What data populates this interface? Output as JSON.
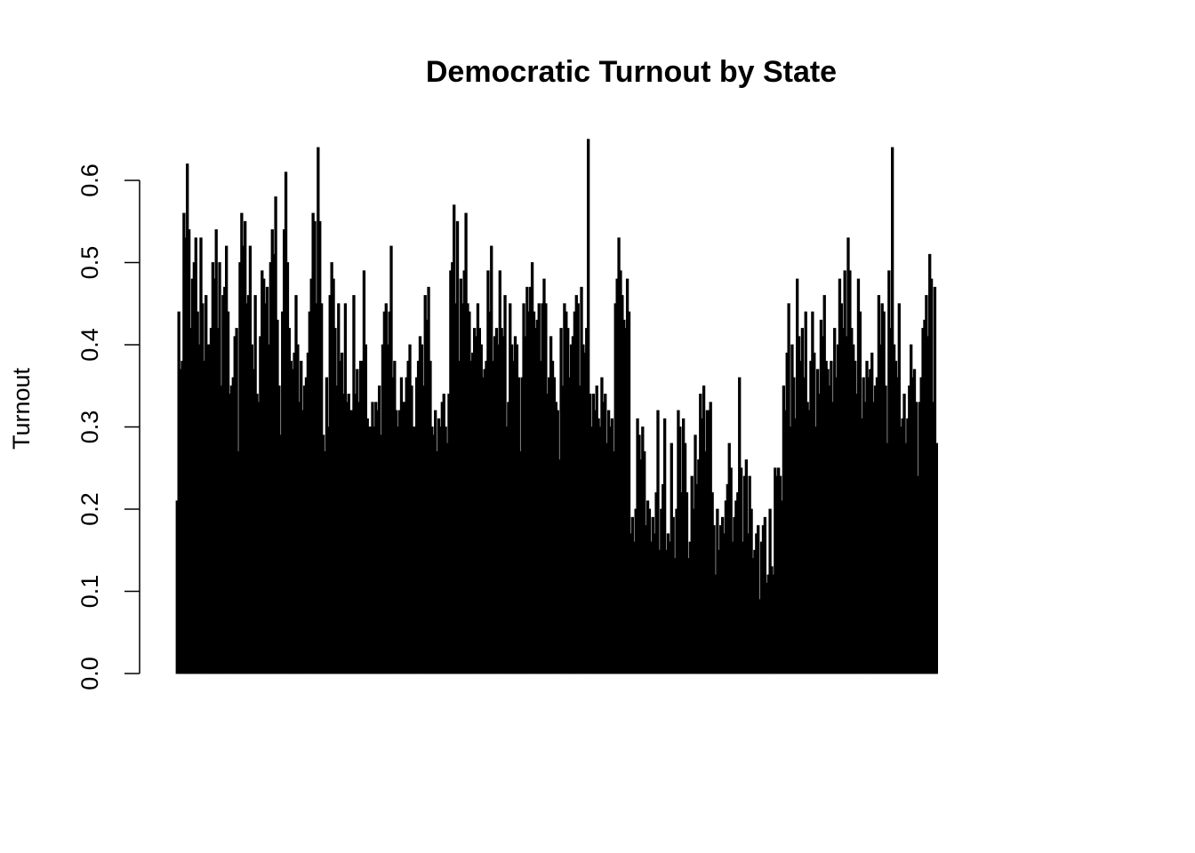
{
  "chart_data": {
    "type": "bar",
    "title": "Democratic Turnout by State",
    "xlabel": "",
    "ylabel": "Turnout",
    "ylim": [
      0,
      0.65
    ],
    "yticks": [
      0.0,
      0.1,
      0.2,
      0.3,
      0.4,
      0.5,
      0.6
    ],
    "ytick_labels": [
      "0.0",
      "0.1",
      "0.2",
      "0.3",
      "0.4",
      "0.5",
      "0.6"
    ],
    "grid": false,
    "legend": "none",
    "bar_color": "#000000",
    "series": [
      {
        "values": [
          0.21,
          0.44,
          0.37,
          0.38,
          0.56,
          0.53,
          0.62,
          0.54,
          0.42,
          0.48,
          0.5,
          0.53,
          0.44,
          0.4,
          0.53,
          0.45,
          0.38,
          0.46,
          0.4,
          0.4,
          0.42,
          0.5,
          0.48,
          0.54,
          0.42,
          0.5,
          0.35,
          0.46,
          0.47,
          0.52,
          0.44,
          0.34,
          0.35,
          0.36,
          0.41,
          0.42,
          0.27,
          0.5,
          0.56,
          0.52,
          0.55,
          0.45,
          0.46,
          0.52,
          0.4,
          0.37,
          0.46,
          0.34,
          0.33,
          0.41,
          0.49,
          0.48,
          0.45,
          0.47,
          0.4,
          0.5,
          0.54,
          0.51,
          0.58,
          0.43,
          0.35,
          0.29,
          0.44,
          0.54,
          0.61,
          0.5,
          0.42,
          0.38,
          0.37,
          0.39,
          0.46,
          0.4,
          0.33,
          0.38,
          0.32,
          0.35,
          0.36,
          0.39,
          0.44,
          0.48,
          0.56,
          0.55,
          0.45,
          0.64,
          0.55,
          0.45,
          0.29,
          0.27,
          0.36,
          0.3,
          0.46,
          0.5,
          0.48,
          0.42,
          0.35,
          0.45,
          0.38,
          0.39,
          0.34,
          0.45,
          0.33,
          0.34,
          0.32,
          0.32,
          0.46,
          0.34,
          0.37,
          0.33,
          0.38,
          0.38,
          0.49,
          0.4,
          0.31,
          0.3,
          0.3,
          0.33,
          0.3,
          0.33,
          0.32,
          0.35,
          0.29,
          0.4,
          0.44,
          0.45,
          0.4,
          0.44,
          0.52,
          0.36,
          0.38,
          0.32,
          0.3,
          0.32,
          0.36,
          0.33,
          0.33,
          0.36,
          0.38,
          0.4,
          0.35,
          0.3,
          0.3,
          0.36,
          0.38,
          0.41,
          0.4,
          0.35,
          0.46,
          0.43,
          0.47,
          0.38,
          0.3,
          0.29,
          0.32,
          0.27,
          0.31,
          0.3,
          0.33,
          0.34,
          0.3,
          0.28,
          0.34,
          0.49,
          0.5,
          0.57,
          0.45,
          0.55,
          0.38,
          0.48,
          0.45,
          0.49,
          0.56,
          0.45,
          0.44,
          0.38,
          0.39,
          0.42,
          0.41,
          0.45,
          0.42,
          0.4,
          0.36,
          0.37,
          0.38,
          0.49,
          0.44,
          0.52,
          0.38,
          0.41,
          0.42,
          0.4,
          0.49,
          0.42,
          0.41,
          0.46,
          0.3,
          0.33,
          0.45,
          0.4,
          0.38,
          0.41,
          0.4,
          0.36,
          0.27,
          0.36,
          0.45,
          0.41,
          0.47,
          0.44,
          0.47,
          0.5,
          0.44,
          0.42,
          0.43,
          0.45,
          0.38,
          0.45,
          0.48,
          0.45,
          0.34,
          0.36,
          0.41,
          0.38,
          0.36,
          0.33,
          0.32,
          0.26,
          0.42,
          0.35,
          0.45,
          0.44,
          0.42,
          0.36,
          0.4,
          0.41,
          0.44,
          0.46,
          0.45,
          0.35,
          0.47,
          0.4,
          0.39,
          0.42,
          0.65,
          0.34,
          0.3,
          0.34,
          0.32,
          0.35,
          0.31,
          0.3,
          0.36,
          0.33,
          0.34,
          0.28,
          0.32,
          0.3,
          0.31,
          0.27,
          0.45,
          0.48,
          0.53,
          0.49,
          0.46,
          0.43,
          0.42,
          0.48,
          0.44,
          0.17,
          0.19,
          0.16,
          0.2,
          0.31,
          0.29,
          0.26,
          0.3,
          0.27,
          0.18,
          0.21,
          0.2,
          0.16,
          0.19,
          0.17,
          0.22,
          0.32,
          0.15,
          0.2,
          0.23,
          0.31,
          0.15,
          0.17,
          0.16,
          0.28,
          0.19,
          0.14,
          0.2,
          0.32,
          0.3,
          0.22,
          0.31,
          0.28,
          0.22,
          0.14,
          0.16,
          0.24,
          0.2,
          0.29,
          0.23,
          0.26,
          0.34,
          0.31,
          0.35,
          0.27,
          0.32,
          0.32,
          0.33,
          0.22,
          0.18,
          0.12,
          0.2,
          0.15,
          0.18,
          0.19,
          0.17,
          0.21,
          0.23,
          0.28,
          0.25,
          0.16,
          0.19,
          0.21,
          0.22,
          0.36,
          0.25,
          0.16,
          0.24,
          0.26,
          0.17,
          0.24,
          0.2,
          0.14,
          0.15,
          0.17,
          0.18,
          0.09,
          0.16,
          0.18,
          0.19,
          0.11,
          0.12,
          0.2,
          0.13,
          0.12,
          0.25,
          0.24,
          0.25,
          0.24,
          0.21,
          0.35,
          0.32,
          0.39,
          0.45,
          0.3,
          0.4,
          0.36,
          0.31,
          0.48,
          0.41,
          0.38,
          0.42,
          0.36,
          0.44,
          0.33,
          0.32,
          0.38,
          0.44,
          0.39,
          0.3,
          0.37,
          0.34,
          0.43,
          0.41,
          0.46,
          0.38,
          0.37,
          0.35,
          0.38,
          0.33,
          0.42,
          0.36,
          0.4,
          0.48,
          0.45,
          0.42,
          0.49,
          0.41,
          0.53,
          0.49,
          0.42,
          0.4,
          0.38,
          0.34,
          0.48,
          0.44,
          0.31,
          0.36,
          0.33,
          0.38,
          0.36,
          0.37,
          0.39,
          0.33,
          0.35,
          0.36,
          0.46,
          0.4,
          0.45,
          0.44,
          0.35,
          0.28,
          0.49,
          0.42,
          0.64,
          0.4,
          0.38,
          0.36,
          0.45,
          0.3,
          0.31,
          0.34,
          0.28,
          0.31,
          0.35,
          0.4,
          0.36,
          0.37,
          0.33,
          0.24,
          0.33,
          0.36,
          0.42,
          0.43,
          0.46,
          0.41,
          0.51,
          0.48,
          0.33,
          0.47,
          0.28
        ]
      }
    ]
  }
}
